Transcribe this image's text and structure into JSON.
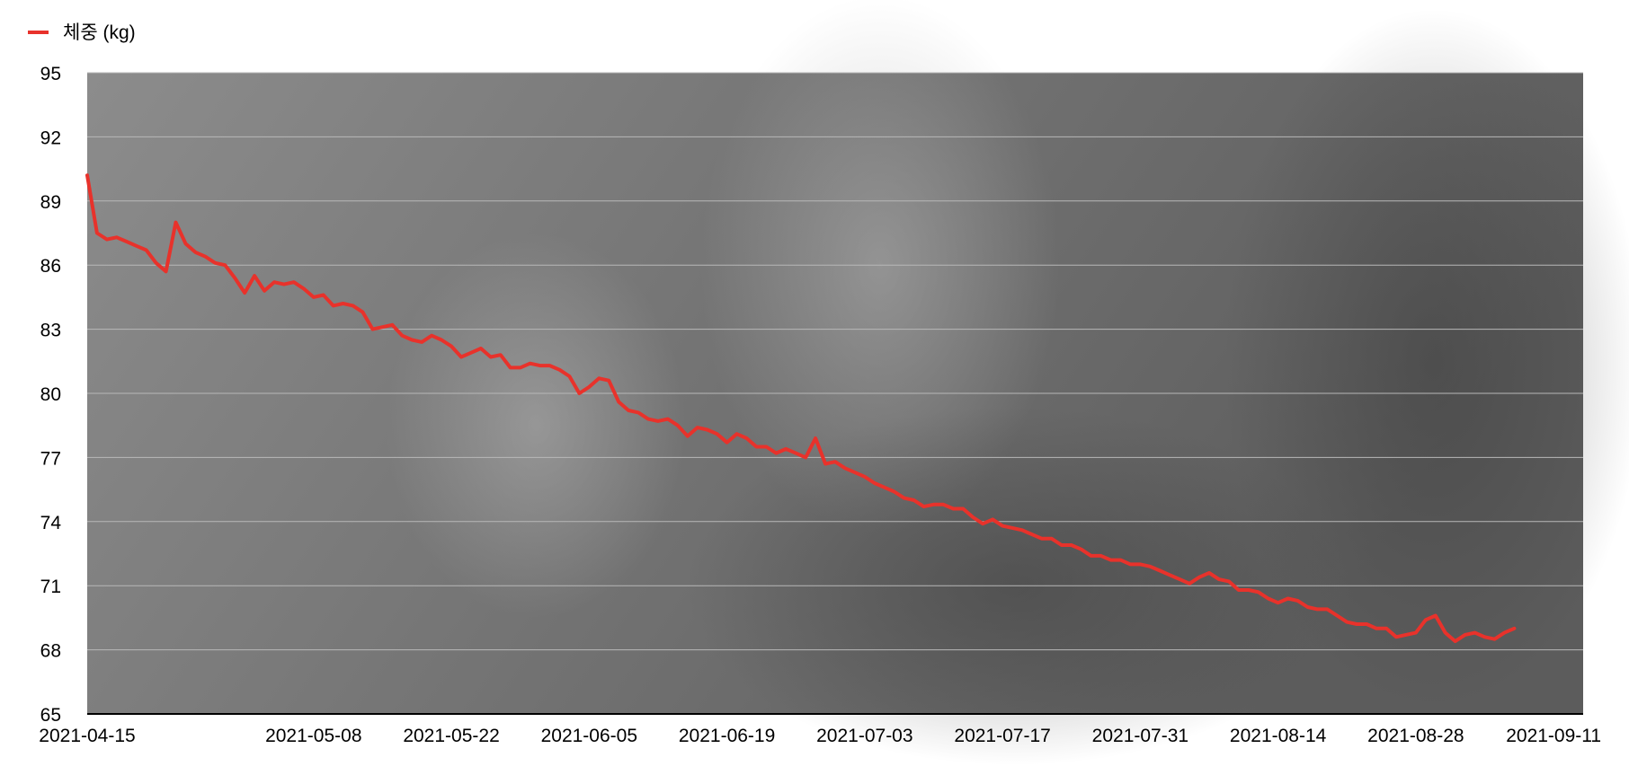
{
  "chart_data": {
    "type": "line",
    "title": "",
    "xlabel": "",
    "ylabel": "",
    "legend": {
      "position": "top-left",
      "entries": [
        "체중 (kg)"
      ]
    },
    "grid": true,
    "ylim": [
      65,
      95
    ],
    "yticks": [
      "95",
      "92",
      "89",
      "86",
      "83",
      "80",
      "77",
      "74",
      "71",
      "68",
      "65"
    ],
    "xlim": [
      "2021-04-15",
      "2021-09-14"
    ],
    "xticks": [
      "2021-04-15",
      "2021-05-08",
      "2021-05-22",
      "2021-06-05",
      "2021-06-19",
      "2021-07-03",
      "2021-07-17",
      "2021-07-31",
      "2021-08-14",
      "2021-08-28",
      "2021-09-11"
    ],
    "series": [
      {
        "name": "체중 (kg)",
        "color": "#e8322b",
        "points": [
          [
            "2021-04-15",
            90.2
          ],
          [
            "2021-04-16",
            87.5
          ],
          [
            "2021-04-17",
            87.2
          ],
          [
            "2021-04-18",
            87.3
          ],
          [
            "2021-04-19",
            87.1
          ],
          [
            "2021-04-20",
            86.9
          ],
          [
            "2021-04-21",
            86.7
          ],
          [
            "2021-04-22",
            86.1
          ],
          [
            "2021-04-23",
            85.7
          ],
          [
            "2021-04-24",
            88.0
          ],
          [
            "2021-04-25",
            87.0
          ],
          [
            "2021-04-26",
            86.6
          ],
          [
            "2021-04-27",
            86.4
          ],
          [
            "2021-04-28",
            86.1
          ],
          [
            "2021-04-29",
            86.0
          ],
          [
            "2021-04-30",
            85.4
          ],
          [
            "2021-05-01",
            84.7
          ],
          [
            "2021-05-02",
            85.5
          ],
          [
            "2021-05-03",
            84.8
          ],
          [
            "2021-05-04",
            85.2
          ],
          [
            "2021-05-05",
            85.1
          ],
          [
            "2021-05-06",
            85.2
          ],
          [
            "2021-05-07",
            84.9
          ],
          [
            "2021-05-08",
            84.5
          ],
          [
            "2021-05-09",
            84.6
          ],
          [
            "2021-05-10",
            84.1
          ],
          [
            "2021-05-11",
            84.2
          ],
          [
            "2021-05-12",
            84.1
          ],
          [
            "2021-05-13",
            83.8
          ],
          [
            "2021-05-14",
            83.0
          ],
          [
            "2021-05-15",
            83.1
          ],
          [
            "2021-05-16",
            83.2
          ],
          [
            "2021-05-17",
            82.7
          ],
          [
            "2021-05-18",
            82.5
          ],
          [
            "2021-05-19",
            82.4
          ],
          [
            "2021-05-20",
            82.7
          ],
          [
            "2021-05-21",
            82.5
          ],
          [
            "2021-05-22",
            82.2
          ],
          [
            "2021-05-23",
            81.7
          ],
          [
            "2021-05-24",
            81.9
          ],
          [
            "2021-05-25",
            82.1
          ],
          [
            "2021-05-26",
            81.7
          ],
          [
            "2021-05-27",
            81.8
          ],
          [
            "2021-05-28",
            81.2
          ],
          [
            "2021-05-29",
            81.2
          ],
          [
            "2021-05-30",
            81.4
          ],
          [
            "2021-05-31",
            81.3
          ],
          [
            "2021-06-01",
            81.3
          ],
          [
            "2021-06-02",
            81.1
          ],
          [
            "2021-06-03",
            80.8
          ],
          [
            "2021-06-04",
            80.0
          ],
          [
            "2021-06-05",
            80.3
          ],
          [
            "2021-06-06",
            80.7
          ],
          [
            "2021-06-07",
            80.6
          ],
          [
            "2021-06-08",
            79.6
          ],
          [
            "2021-06-09",
            79.2
          ],
          [
            "2021-06-10",
            79.1
          ],
          [
            "2021-06-11",
            78.8
          ],
          [
            "2021-06-12",
            78.7
          ],
          [
            "2021-06-13",
            78.8
          ],
          [
            "2021-06-14",
            78.5
          ],
          [
            "2021-06-15",
            78.0
          ],
          [
            "2021-06-16",
            78.4
          ],
          [
            "2021-06-17",
            78.3
          ],
          [
            "2021-06-18",
            78.1
          ],
          [
            "2021-06-19",
            77.7
          ],
          [
            "2021-06-20",
            78.1
          ],
          [
            "2021-06-21",
            77.9
          ],
          [
            "2021-06-22",
            77.5
          ],
          [
            "2021-06-23",
            77.5
          ],
          [
            "2021-06-24",
            77.2
          ],
          [
            "2021-06-25",
            77.4
          ],
          [
            "2021-06-26",
            77.2
          ],
          [
            "2021-06-27",
            77.0
          ],
          [
            "2021-06-28",
            77.9
          ],
          [
            "2021-06-29",
            76.7
          ],
          [
            "2021-06-30",
            76.8
          ],
          [
            "2021-07-01",
            76.5
          ],
          [
            "2021-07-02",
            76.3
          ],
          [
            "2021-07-03",
            76.1
          ],
          [
            "2021-07-04",
            75.8
          ],
          [
            "2021-07-05",
            75.6
          ],
          [
            "2021-07-06",
            75.4
          ],
          [
            "2021-07-07",
            75.1
          ],
          [
            "2021-07-08",
            75.0
          ],
          [
            "2021-07-09",
            74.7
          ],
          [
            "2021-07-10",
            74.8
          ],
          [
            "2021-07-11",
            74.8
          ],
          [
            "2021-07-12",
            74.6
          ],
          [
            "2021-07-13",
            74.6
          ],
          [
            "2021-07-14",
            74.2
          ],
          [
            "2021-07-15",
            73.9
          ],
          [
            "2021-07-16",
            74.1
          ],
          [
            "2021-07-17",
            73.8
          ],
          [
            "2021-07-18",
            73.7
          ],
          [
            "2021-07-19",
            73.6
          ],
          [
            "2021-07-20",
            73.4
          ],
          [
            "2021-07-21",
            73.2
          ],
          [
            "2021-07-22",
            73.2
          ],
          [
            "2021-07-23",
            72.9
          ],
          [
            "2021-07-24",
            72.9
          ],
          [
            "2021-07-25",
            72.7
          ],
          [
            "2021-07-26",
            72.4
          ],
          [
            "2021-07-27",
            72.4
          ],
          [
            "2021-07-28",
            72.2
          ],
          [
            "2021-07-29",
            72.2
          ],
          [
            "2021-07-30",
            72.0
          ],
          [
            "2021-07-31",
            72.0
          ],
          [
            "2021-08-01",
            71.9
          ],
          [
            "2021-08-02",
            71.7
          ],
          [
            "2021-08-03",
            71.5
          ],
          [
            "2021-08-04",
            71.3
          ],
          [
            "2021-08-05",
            71.1
          ],
          [
            "2021-08-06",
            71.4
          ],
          [
            "2021-08-07",
            71.6
          ],
          [
            "2021-08-08",
            71.3
          ],
          [
            "2021-08-09",
            71.2
          ],
          [
            "2021-08-10",
            70.8
          ],
          [
            "2021-08-11",
            70.8
          ],
          [
            "2021-08-12",
            70.7
          ],
          [
            "2021-08-13",
            70.4
          ],
          [
            "2021-08-14",
            70.2
          ],
          [
            "2021-08-15",
            70.4
          ],
          [
            "2021-08-16",
            70.3
          ],
          [
            "2021-08-17",
            70.0
          ],
          [
            "2021-08-18",
            69.9
          ],
          [
            "2021-08-19",
            69.9
          ],
          [
            "2021-08-20",
            69.6
          ],
          [
            "2021-08-21",
            69.3
          ],
          [
            "2021-08-22",
            69.2
          ],
          [
            "2021-08-23",
            69.2
          ],
          [
            "2021-08-24",
            69.0
          ],
          [
            "2021-08-25",
            69.0
          ],
          [
            "2021-08-26",
            68.6
          ],
          [
            "2021-08-27",
            68.7
          ],
          [
            "2021-08-28",
            68.8
          ],
          [
            "2021-08-29",
            69.4
          ],
          [
            "2021-08-30",
            69.6
          ],
          [
            "2021-08-31",
            68.8
          ],
          [
            "2021-09-01",
            68.4
          ],
          [
            "2021-09-02",
            68.7
          ],
          [
            "2021-09-03",
            68.8
          ],
          [
            "2021-09-04",
            68.6
          ],
          [
            "2021-09-05",
            68.5
          ],
          [
            "2021-09-06",
            68.8
          ],
          [
            "2021-09-07",
            69.0
          ]
        ]
      }
    ]
  },
  "colors": {
    "line": "#e8322b",
    "grid": "#b8b8b8",
    "plot_bg_light": "#8a8a8a",
    "plot_bg_dark": "#5e5e5e"
  }
}
